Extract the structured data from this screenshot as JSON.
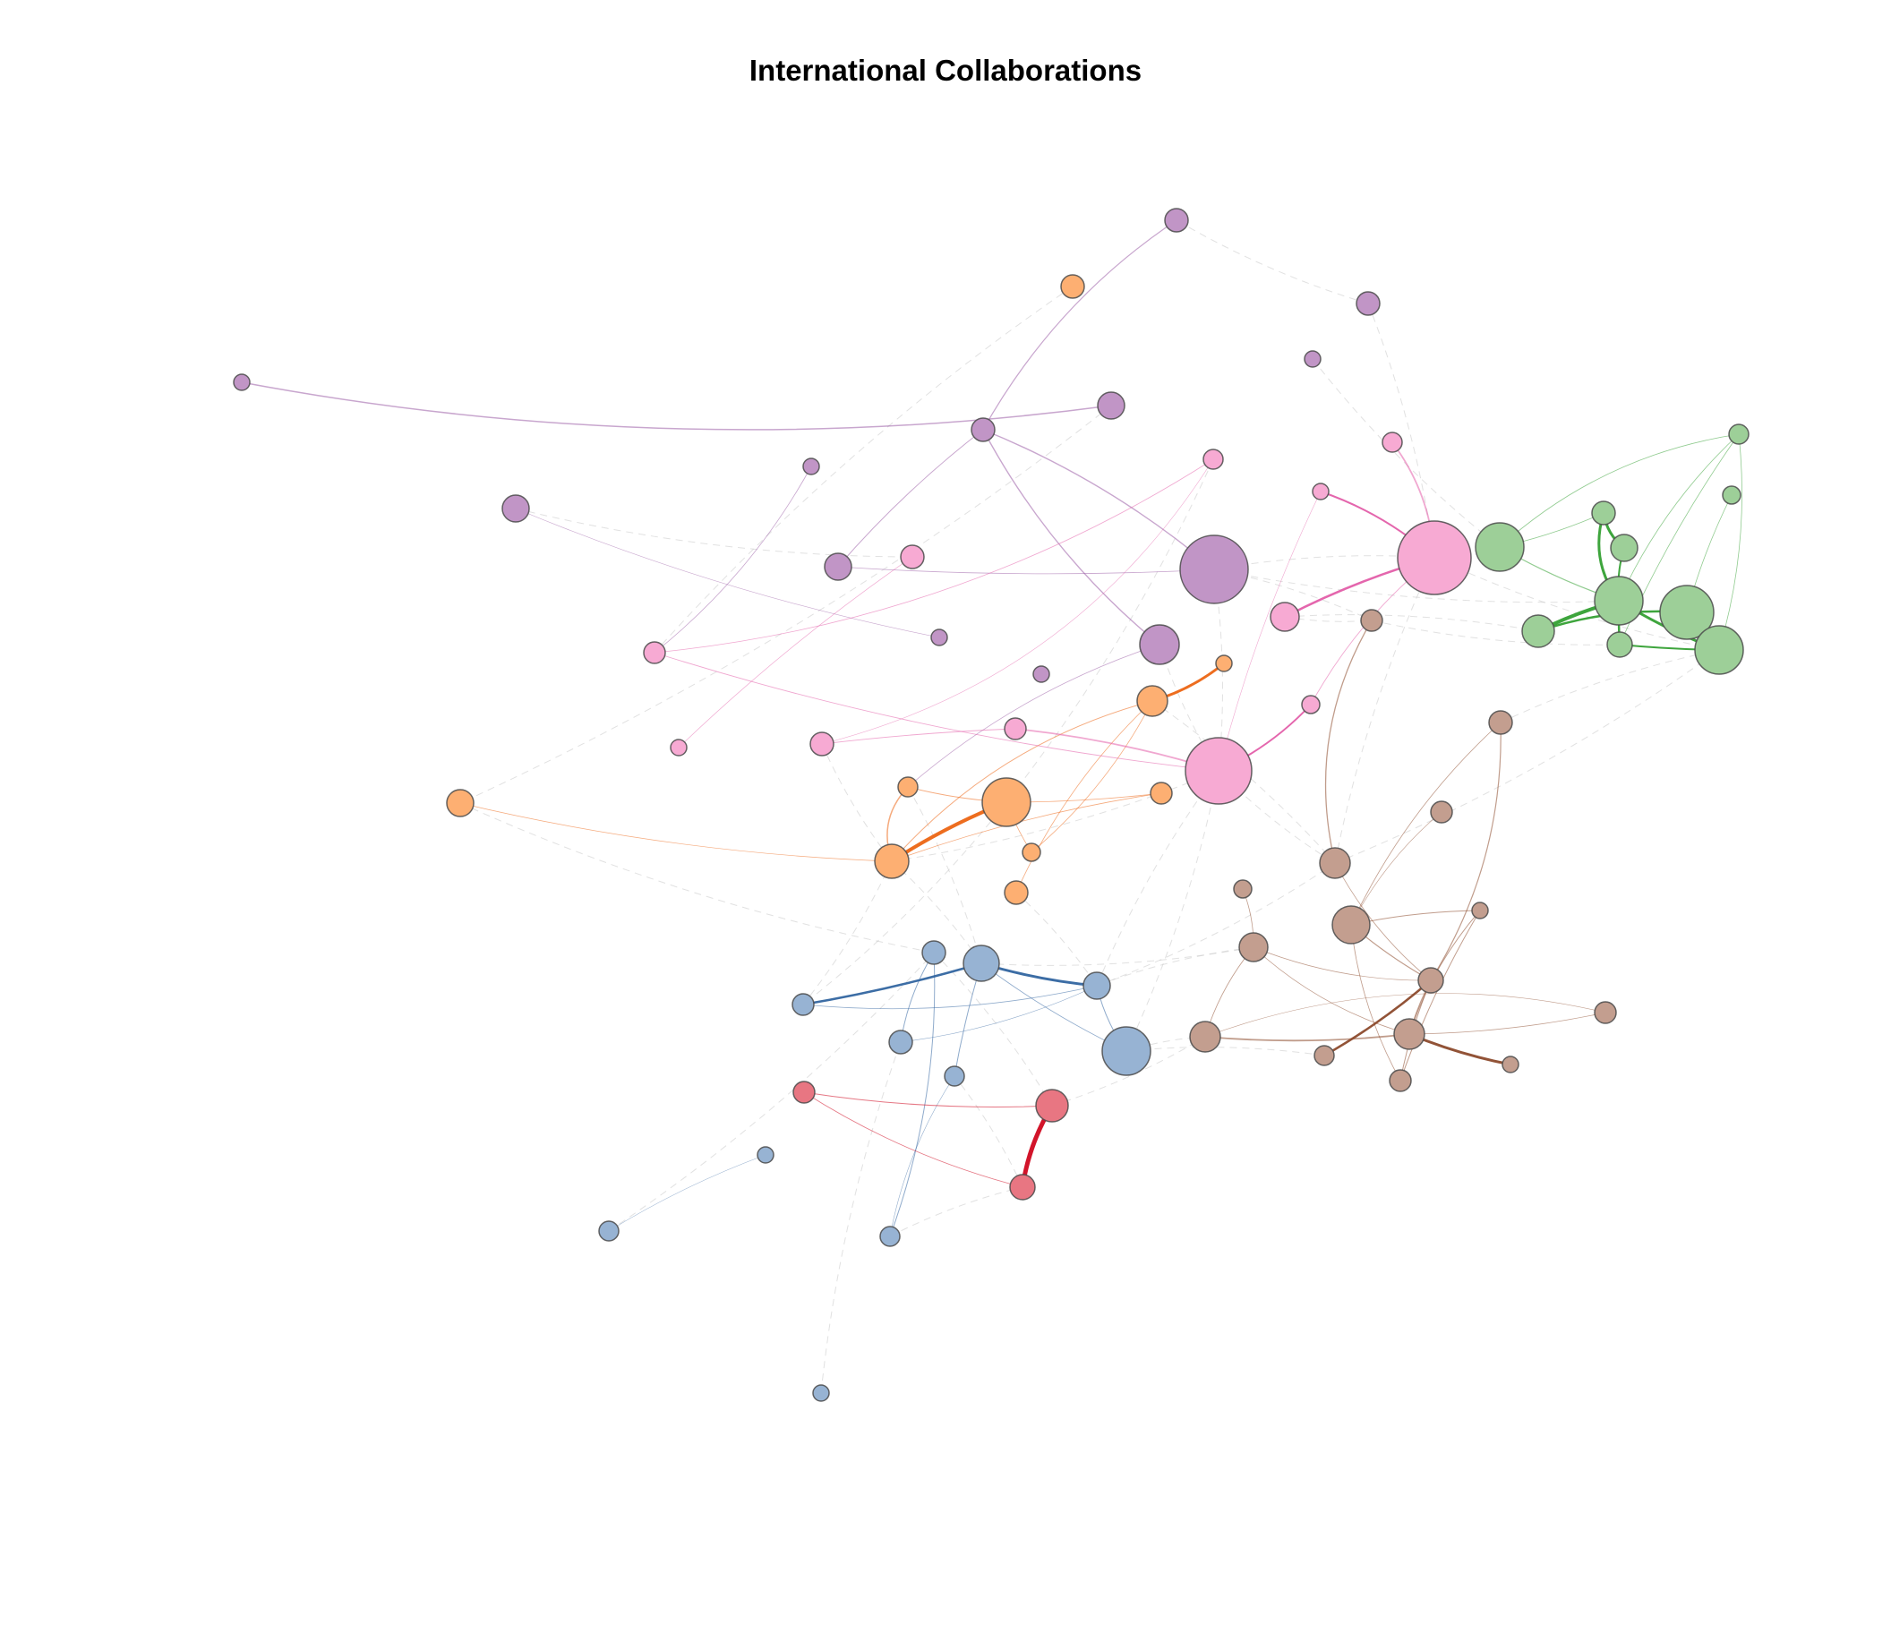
{
  "title": "International Collaborations",
  "community_colors": {
    "purple": "#c195c6",
    "orange": "#fdaf72",
    "pink": "#f7aad3",
    "green": "#9dcf98",
    "brown": "#c39e8f",
    "blue": "#97b3d3",
    "red": "#e87682"
  },
  "edge_colors": {
    "purple": "#9a5ca6",
    "orange": "#ec6513",
    "pink": "#e35ea9",
    "green": "#34a033",
    "brown": "#8c4a2c",
    "blue": "#3265a0",
    "red": "#d0071f",
    "cross": "#c8c8c8"
  }
}
